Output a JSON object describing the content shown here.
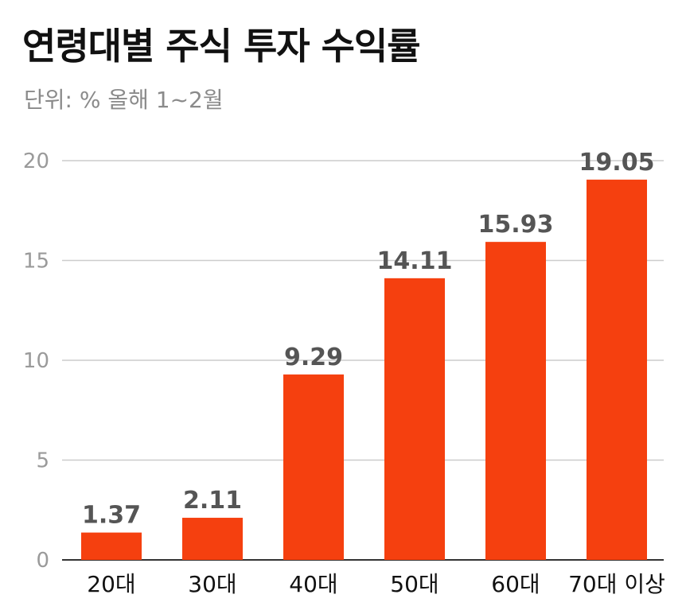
{
  "chart_data": {
    "type": "bar",
    "title": "연령대별 주식 투자 수익률",
    "subtitle": "단위: %  올해 1~2월",
    "categories": [
      "20대",
      "30대",
      "40대",
      "50대",
      "60대",
      "70대 이상"
    ],
    "values": [
      1.37,
      2.11,
      9.29,
      14.11,
      15.93,
      19.05
    ],
    "value_labels": [
      "1.37",
      "2.11",
      "9.29",
      "14.11",
      "15.93",
      "19.05"
    ],
    "ylim": [
      0,
      20
    ],
    "yticks": [
      0,
      5,
      10,
      15,
      20
    ],
    "xlabel": "",
    "ylabel": "",
    "grid": true,
    "bar_color": "#f5400f"
  }
}
